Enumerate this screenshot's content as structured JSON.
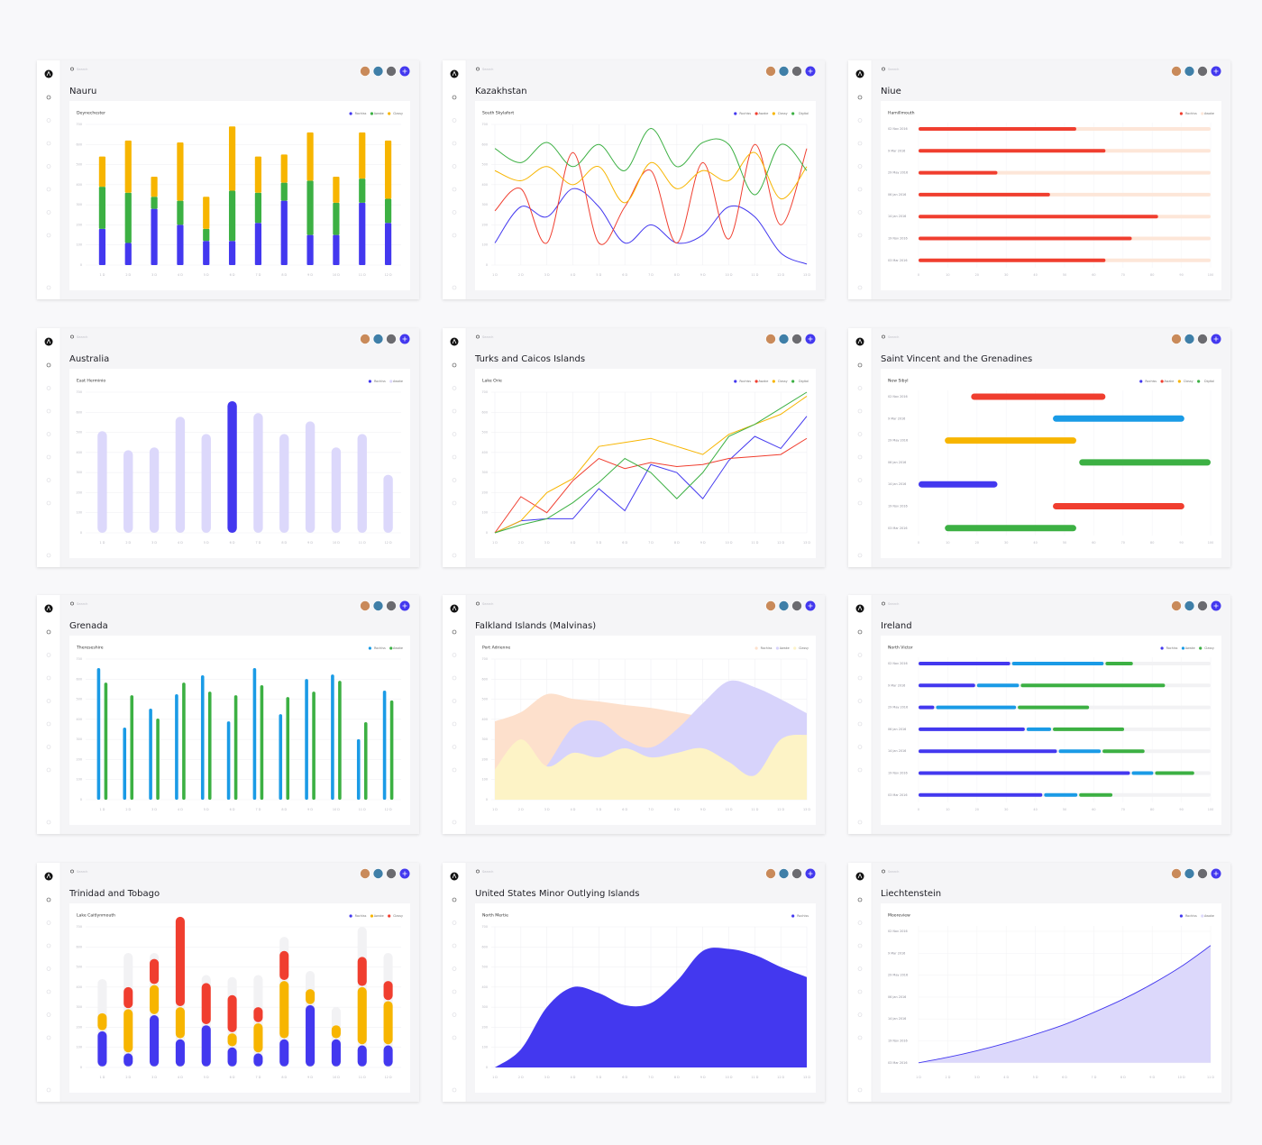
{
  "search_placeholder": "Search",
  "chart_data": [
    {
      "type": "stacked_bar",
      "title": "Nauru",
      "subtitle": "Deynechester",
      "categories": [
        "1 D",
        "2 D",
        "3 D",
        "4 D",
        "5 D",
        "6 D",
        "7 D",
        "8 D",
        "9 D",
        "10 D",
        "11 D",
        "12 D"
      ],
      "series": [
        {
          "name": "Rochiss",
          "color": "#4338ef",
          "values": [
            180,
            110,
            280,
            200,
            120,
            120,
            210,
            320,
            150,
            150,
            310,
            210
          ]
        },
        {
          "name": "Awake",
          "color": "#3cb043",
          "values": [
            210,
            250,
            60,
            120,
            60,
            250,
            150,
            90,
            270,
            160,
            120,
            120
          ]
        },
        {
          "name": "Classy",
          "color": "#f7b500",
          "values": [
            150,
            260,
            100,
            290,
            160,
            320,
            180,
            140,
            240,
            130,
            230,
            290
          ]
        }
      ],
      "ylim": [
        0,
        700
      ],
      "yticks": [
        0,
        100,
        200,
        300,
        400,
        500,
        600,
        700
      ],
      "grid": true,
      "legend": "top-right"
    },
    {
      "type": "line",
      "smooth": true,
      "title": "Kazakhstan",
      "subtitle": "South Skylafort",
      "categories": [
        "1 D",
        "2 D",
        "3 D",
        "4 D",
        "5 D",
        "6 D",
        "7 D",
        "8 D",
        "9 D",
        "10 D",
        "11 D",
        "12 D",
        "13 D"
      ],
      "series": [
        {
          "name": "Rochiss",
          "color": "#4338ef",
          "values": [
            110,
            290,
            240,
            380,
            290,
            110,
            200,
            110,
            150,
            290,
            240,
            60,
            5
          ]
        },
        {
          "name": "Awake",
          "color": "#f03e2f",
          "values": [
            270,
            380,
            110,
            560,
            110,
            290,
            470,
            110,
            510,
            130,
            600,
            200,
            580
          ]
        },
        {
          "name": "Classy",
          "color": "#f7b500",
          "values": [
            470,
            420,
            490,
            400,
            490,
            310,
            510,
            380,
            470,
            420,
            560,
            330,
            490
          ]
        },
        {
          "name": "Digital",
          "color": "#3cb043",
          "values": [
            580,
            510,
            610,
            490,
            600,
            470,
            680,
            490,
            610,
            600,
            350,
            600,
            470
          ]
        }
      ],
      "ylim": [
        0,
        700
      ],
      "yticks": [
        0,
        100,
        200,
        300,
        400,
        500,
        600,
        700
      ],
      "grid": true,
      "legend": "top-right"
    },
    {
      "type": "progress",
      "title": "Niue",
      "subtitle": "Hamillmouth",
      "categories": [
        "02 Nov 2016",
        "9 Mar 2016",
        "29 May 2016",
        "06 Jan 2016",
        "14 Jan 2016",
        "19 Nov 2016",
        "03 Mar 2016"
      ],
      "series": [
        {
          "name": "Rochiss",
          "color": "#f03e2f",
          "values": [
            54,
            64,
            27,
            45,
            82,
            73,
            64
          ]
        },
        {
          "name": "Awake",
          "color": "#fde6d8"
        }
      ],
      "xlim": [
        0,
        100
      ],
      "xticks": [
        0,
        10,
        20,
        30,
        40,
        50,
        60,
        70,
        80,
        90,
        100
      ],
      "legend": "top-right"
    },
    {
      "type": "bar",
      "title": "Australia",
      "subtitle": "East Herminio",
      "categories": [
        "1 D",
        "2 D",
        "3 D",
        "4 D",
        "5 D",
        "6 D",
        "7 D",
        "8 D",
        "9 D",
        "10 D",
        "11 D",
        "12 D"
      ],
      "values": [
        506,
        411,
        425,
        578,
        492,
        655,
        596,
        492,
        555,
        425,
        492,
        289
      ],
      "highlight_index": 5,
      "series": [
        {
          "name": "Rochiss",
          "color": "#4338ef"
        },
        {
          "name": "Awake",
          "color": "#dcd8fb"
        }
      ],
      "ylim": [
        0,
        700
      ],
      "yticks": [
        0,
        100,
        200,
        300,
        400,
        500,
        600,
        700
      ],
      "grid": true,
      "legend": "top-right"
    },
    {
      "type": "line",
      "smooth": false,
      "title": "Turks and Caicos Islands",
      "subtitle": "Lake Orie",
      "categories": [
        "1 D",
        "2 D",
        "3 D",
        "4 D",
        "5 D",
        "6 D",
        "7 D",
        "8 D",
        "9 D",
        "10 D",
        "11 D",
        "12 D",
        "13 D"
      ],
      "series": [
        {
          "name": "Rochiss",
          "color": "#4338ef",
          "values": [
            0,
            60,
            70,
            70,
            220,
            110,
            340,
            300,
            170,
            360,
            480,
            420,
            580
          ]
        },
        {
          "name": "Awake",
          "color": "#f03e2f",
          "values": [
            0,
            180,
            100,
            260,
            370,
            320,
            350,
            330,
            340,
            370,
            380,
            390,
            470
          ]
        },
        {
          "name": "Classy",
          "color": "#f7b500",
          "values": [
            0,
            60,
            200,
            270,
            430,
            450,
            470,
            430,
            390,
            490,
            540,
            590,
            680
          ]
        },
        {
          "name": "Digital",
          "color": "#3cb043",
          "values": [
            0,
            40,
            70,
            150,
            250,
            370,
            300,
            170,
            300,
            480,
            540,
            620,
            700
          ]
        }
      ],
      "ylim": [
        0,
        700
      ],
      "yticks": [
        0,
        100,
        200,
        300,
        400,
        500,
        600,
        700
      ],
      "grid": true,
      "legend": "top-right"
    },
    {
      "type": "gantt",
      "title": "Saint Vincent and the Grenadines",
      "subtitle": "New Sibyl",
      "categories": [
        "02 Nov 2016",
        "9 Mar 2016",
        "29 May 2016",
        "06 Jan 2016",
        "14 Jan 2016",
        "19 Nov 2016",
        "03 Mar 2016"
      ],
      "starts": [
        18,
        46,
        9,
        55,
        0,
        46,
        9
      ],
      "ends": [
        64,
        91,
        54,
        100,
        27,
        91,
        54
      ],
      "bar_colors": [
        "#f03e2f",
        "#1a9be6",
        "#f7b500",
        "#3cb043",
        "#4338ef",
        "#f03e2f",
        "#3cb043"
      ],
      "series": [
        {
          "name": "Rochiss",
          "color": "#4338ef"
        },
        {
          "name": "Awake",
          "color": "#f03e2f"
        },
        {
          "name": "Classy",
          "color": "#f7b500"
        },
        {
          "name": "Digital",
          "color": "#3cb043"
        }
      ],
      "xlim": [
        0,
        100
      ],
      "xticks": [
        0,
        10,
        20,
        30,
        40,
        50,
        60,
        70,
        80,
        90,
        100
      ],
      "legend": "top-right"
    },
    {
      "type": "grouped_bar",
      "title": "Grenada",
      "subtitle": "Thereseshire",
      "categories": [
        "1 D",
        "2 D",
        "3 D",
        "4 D",
        "5 D",
        "6 D",
        "7 D",
        "8 D",
        "9 D",
        "10 D",
        "11 D",
        "12 D"
      ],
      "series": [
        {
          "name": "Rochiss",
          "color": "#1a9be6",
          "values": [
            655,
            359,
            453,
            525,
            619,
            390,
            655,
            426,
            601,
            623,
            301,
            543
          ]
        },
        {
          "name": "Awake",
          "color": "#3cb043",
          "values": [
            583,
            520,
            404,
            583,
            538,
            520,
            570,
            511,
            538,
            592,
            386,
            494
          ]
        }
      ],
      "ylim": [
        0,
        700
      ],
      "yticks": [
        0,
        100,
        200,
        300,
        400,
        500,
        600,
        700
      ],
      "grid": true,
      "legend": "top-right"
    },
    {
      "type": "area",
      "title": "Falkland Islands (Malvinas)",
      "subtitle": "Port Adrienne",
      "categories": [
        "1 D",
        "2 D",
        "3 D",
        "4 D",
        "5 D",
        "6 D",
        "7 D",
        "8 D",
        "9 D",
        "10 D",
        "11 D",
        "12 D",
        "13 D"
      ],
      "series": [
        {
          "name": "Rochiss",
          "color": "#fde0cc",
          "values": [
            390,
            435,
            525,
            502,
            489,
            471,
            457,
            435,
            413,
            390,
            368,
            355,
            337
          ]
        },
        {
          "name": "Awake",
          "color": "#d7d3fb",
          "values": [
            0,
            20,
            170,
            360,
            390,
            300,
            260,
            350,
            480,
            590,
            560,
            500,
            430
          ]
        },
        {
          "name": "Classy",
          "color": "#fdf3c6",
          "values": [
            150,
            300,
            166,
            233,
            211,
            256,
            211,
            233,
            256,
            188,
            121,
            300,
            323
          ]
        }
      ],
      "ylim": [
        0,
        700
      ],
      "yticks": [
        0,
        100,
        200,
        300,
        400,
        500,
        600,
        700
      ],
      "grid": true,
      "legend": "top-right"
    },
    {
      "type": "stacked_hbar",
      "title": "Ireland",
      "subtitle": "North Victor",
      "categories": [
        "02 Nov 2016",
        "9 Mar 2016",
        "29 May 2016",
        "06 Jan 2016",
        "14 Jan 2016",
        "19 Nov 2016",
        "03 Mar 2016"
      ],
      "series": [
        {
          "name": "Rochiss",
          "color": "#4338ef",
          "values": [
            32,
            20,
            6,
            37,
            48,
            73,
            43
          ]
        },
        {
          "name": "Awake",
          "color": "#1a9be6",
          "values": [
            32,
            15,
            28,
            9,
            15,
            8,
            12
          ]
        },
        {
          "name": "Classy",
          "color": "#3cb043",
          "values": [
            10,
            50,
            25,
            25,
            15,
            14,
            12
          ]
        }
      ],
      "track_color": "#f2f2f4",
      "xlim": [
        0,
        100
      ],
      "xticks": [
        0,
        10,
        20,
        30,
        40,
        50,
        60,
        70,
        80,
        90,
        100
      ],
      "legend": "top-right"
    },
    {
      "type": "stacked_bar",
      "title": "Trinidad and Tobago",
      "subtitle": "Lake Caitlynmouth",
      "categories": [
        "1 D",
        "2 D",
        "3 D",
        "4 D",
        "5 D",
        "6 D",
        "7 D",
        "8 D",
        "9 D",
        "10 D",
        "11 D",
        "12 D"
      ],
      "series": [
        {
          "name": "Rochiss",
          "color": "#4338ef",
          "values": [
            180,
            70,
            260,
            140,
            210,
            100,
            70,
            140,
            310,
            140,
            110,
            110
          ]
        },
        {
          "name": "Awake",
          "color": "#f7b500",
          "values": [
            90,
            220,
            150,
            160,
            0,
            70,
            150,
            290,
            80,
            70,
            290,
            220
          ]
        },
        {
          "name": "Classy",
          "color": "#f03e2f",
          "values": [
            0,
            110,
            130,
            450,
            210,
            190,
            80,
            150,
            0,
            0,
            150,
            100
          ]
        }
      ],
      "track_values": [
        440,
        570,
        570,
        700,
        460,
        450,
        460,
        650,
        480,
        300,
        700,
        570
      ],
      "track_color": "#f2f2f4",
      "ylim": [
        0,
        700
      ],
      "yticks": [
        0,
        100,
        200,
        300,
        400,
        500,
        600,
        700
      ],
      "grid": true,
      "legend": "top-right"
    },
    {
      "type": "area",
      "title": "United States Minor Outlying Islands",
      "subtitle": "North Mertie",
      "categories": [
        "1 D",
        "2 D",
        "3 D",
        "4 D",
        "5 D",
        "6 D",
        "7 D",
        "8 D",
        "9 D",
        "10 D",
        "11 D",
        "12 D",
        "13 D"
      ],
      "series": [
        {
          "name": "Rochiss",
          "color": "#4338ef",
          "values": [
            0,
            90,
            300,
            400,
            370,
            310,
            320,
            430,
            580,
            590,
            560,
            500,
            450
          ]
        }
      ],
      "ylim": [
        0,
        700
      ],
      "yticks": [
        0,
        100,
        200,
        300,
        400,
        500,
        600,
        700
      ],
      "grid": true,
      "legend": "top-right"
    },
    {
      "type": "area_line",
      "title": "Liechtenstein",
      "subtitle": "Mooreview",
      "categories": [
        "1 D",
        "2 D",
        "3 D",
        "4 D",
        "5 D",
        "6 D",
        "7 D",
        "8 D",
        "9 D",
        "10 D",
        "11 D"
      ],
      "series": [
        {
          "name": "Rochiss",
          "color": "#4338ef",
          "values": [
            0,
            0.25,
            0.55,
            0.9,
            1.3,
            1.75,
            2.3,
            2.9,
            3.6,
            4.4,
            5.35
          ]
        },
        {
          "name": "Awake",
          "color": "#dcd8fb"
        }
      ],
      "ylim": [
        0,
        6
      ],
      "yticks": [
        {
          "value": 6,
          "label": "02 Nov 2016"
        },
        {
          "value": 5,
          "label": "9 Mar 2016"
        },
        {
          "value": 4,
          "label": "29 May 2016"
        },
        {
          "value": 3,
          "label": "06 Jan 2016"
        },
        {
          "value": 2,
          "label": "14 Jan 2016"
        },
        {
          "value": 1,
          "label": "19 Nov 2016"
        },
        {
          "value": 0,
          "label": "03 Mar 2016"
        }
      ],
      "grid": true,
      "legend": "top-right"
    }
  ]
}
